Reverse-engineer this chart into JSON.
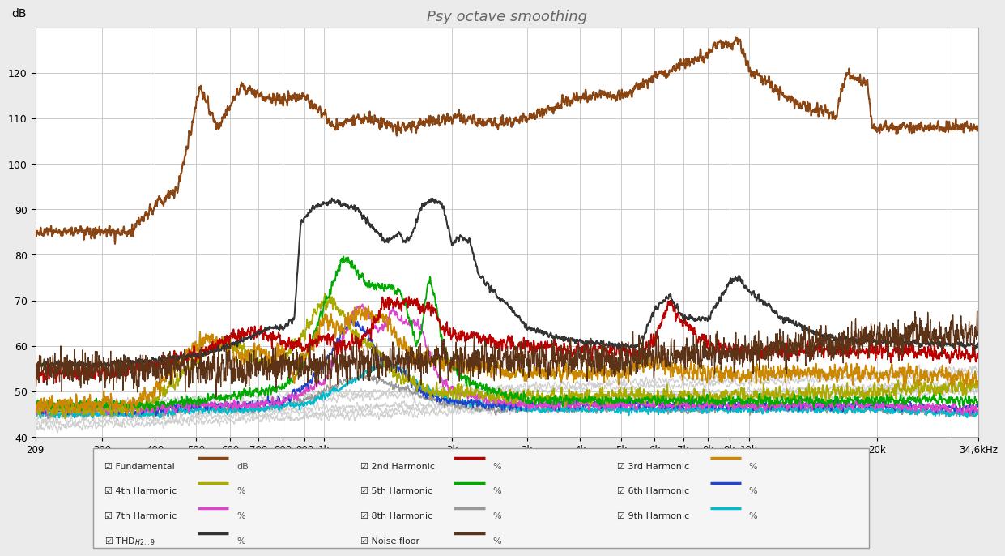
{
  "title": "Psy octave smoothing",
  "ylabel": "dB",
  "bg_color": "#ebebeb",
  "plot_bg_color": "#ffffff",
  "grid_color": "#cccccc",
  "ylim": [
    40,
    130
  ],
  "yticks": [
    40,
    50,
    60,
    70,
    80,
    90,
    100,
    110,
    120
  ],
  "freq_min": 209,
  "freq_max": 34600,
  "colors": {
    "fundamental": "#8B4513",
    "2nd": "#bb0000",
    "3rd": "#cc8800",
    "4th": "#aaaa00",
    "5th": "#00aa00",
    "6th": "#2244cc",
    "7th": "#dd44cc",
    "8th": "#999999",
    "9th": "#00bbcc",
    "thd": "#333333",
    "noise": "#5c3317"
  },
  "xtick_freqs": [
    209,
    300,
    400,
    500,
    600,
    700,
    800,
    900,
    1000,
    2000,
    3000,
    4000,
    5000,
    6000,
    7000,
    8000,
    9000,
    10000,
    20000,
    34600
  ],
  "xtick_labels": [
    "209",
    "300",
    "400",
    "500",
    "600",
    "700",
    "800",
    "900",
    "1k",
    "2k",
    "3k",
    "4k",
    "5k",
    "6k",
    "7k",
    "8k",
    "9k",
    "10k",
    "20k",
    "34,6kHz"
  ]
}
